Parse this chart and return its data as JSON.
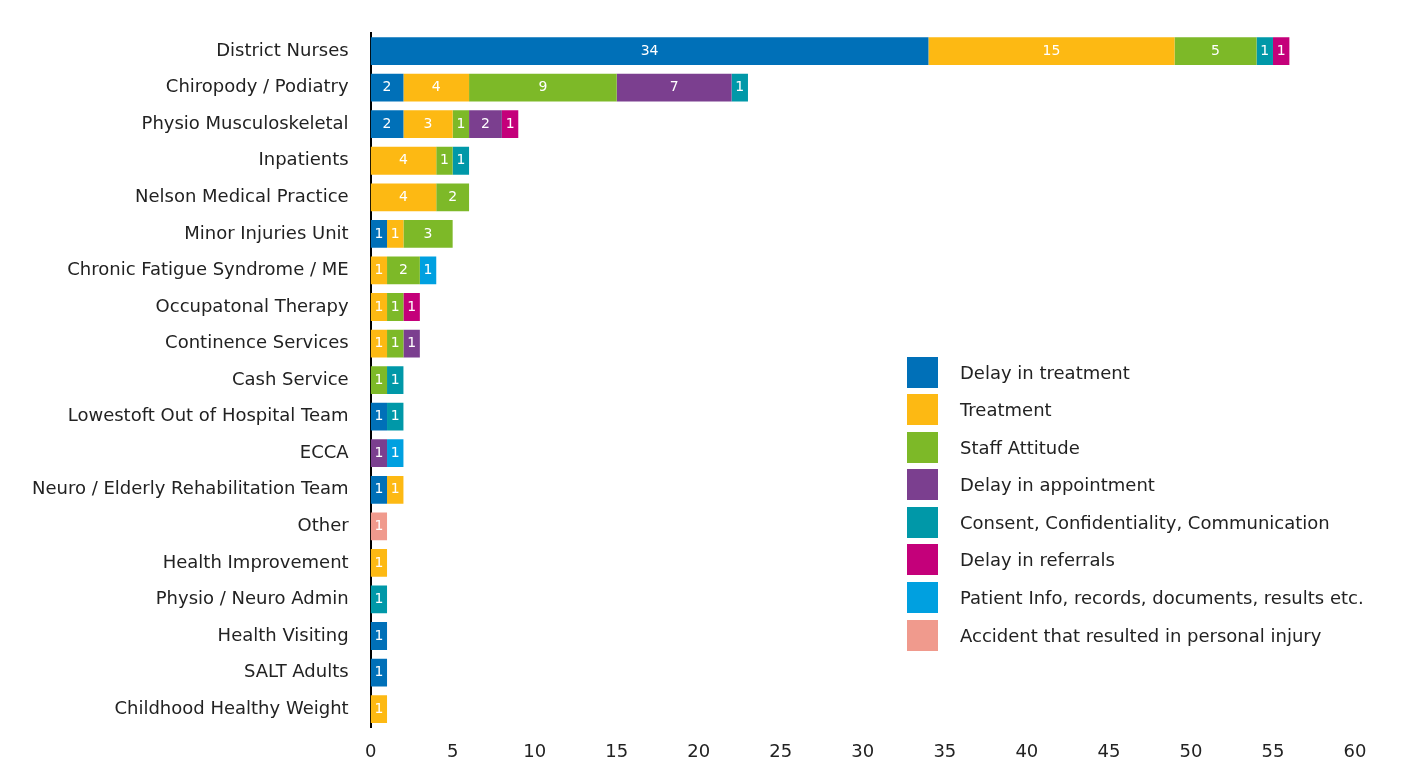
{
  "chart_data": {
    "type": "bar",
    "orientation": "horizontal",
    "stacked": true,
    "data_labels": true,
    "grid": false,
    "legend": "right",
    "categories": [
      "District Nurses",
      "Chiropody / Podiatry",
      "Physio Musculoskeletal",
      "Inpatients",
      "Nelson Medical Practice",
      "Minor Injuries Unit",
      "Chronic Fatigue Syndrome / ME",
      "Occupatonal Therapy",
      "Continence Services",
      "Cash Service",
      "Lowestoft Out of Hospital Team",
      "ECCA",
      "Neuro / Elderly Rehabilitation Team",
      "Other",
      "Health Improvement",
      "Physio / Neuro Admin",
      "Health Visiting",
      "SALT Adults",
      "Childhood Healthy Weight"
    ],
    "xlim": [
      0,
      60
    ],
    "xticks": [
      0,
      5,
      10,
      15,
      20,
      25,
      30,
      35,
      40,
      45,
      50,
      55,
      60
    ],
    "series": [
      {
        "name": "Delay in treatment",
        "color": "#0070b8",
        "values": [
          34,
          2,
          2,
          null,
          null,
          1,
          null,
          null,
          null,
          null,
          1,
          null,
          1,
          null,
          null,
          null,
          1,
          1,
          null
        ]
      },
      {
        "name": "Treatment",
        "color": "#fdb913",
        "values": [
          15,
          4,
          3,
          4,
          4,
          1,
          1,
          1,
          1,
          null,
          null,
          null,
          1,
          null,
          1,
          null,
          null,
          null,
          1
        ]
      },
      {
        "name": "Staff Attitude",
        "color": "#7db928",
        "values": [
          5,
          9,
          1,
          1,
          2,
          3,
          2,
          1,
          1,
          1,
          null,
          null,
          null,
          null,
          null,
          null,
          null,
          null,
          null
        ]
      },
      {
        "name": "Delay in appointment",
        "color": "#7b3f8f",
        "values": [
          null,
          7,
          2,
          null,
          null,
          null,
          null,
          null,
          1,
          null,
          null,
          1,
          null,
          null,
          null,
          null,
          null,
          null,
          null
        ]
      },
      {
        "name": "Consent, Confidentiality, Communication",
        "color": "#0098a8",
        "values": [
          1,
          1,
          null,
          1,
          null,
          null,
          null,
          null,
          null,
          1,
          1,
          null,
          null,
          null,
          null,
          1,
          null,
          null,
          null
        ]
      },
      {
        "name": "Delay in referrals",
        "color": "#c4007a",
        "values": [
          1,
          null,
          1,
          null,
          null,
          null,
          null,
          1,
          null,
          null,
          null,
          null,
          null,
          null,
          null,
          null,
          null,
          null,
          null
        ]
      },
      {
        "name": "Patient Info, records, documents, results etc.",
        "color": "#00a0e0",
        "values": [
          null,
          null,
          null,
          null,
          null,
          null,
          1,
          null,
          null,
          null,
          null,
          1,
          null,
          null,
          null,
          null,
          null,
          null,
          null
        ]
      },
      {
        "name": "Accident that resulted in personal injury",
        "color": "#f09a8d",
        "values": [
          null,
          null,
          null,
          null,
          null,
          null,
          null,
          null,
          null,
          null,
          null,
          null,
          null,
          1,
          null,
          null,
          null,
          null,
          null
        ]
      }
    ]
  }
}
